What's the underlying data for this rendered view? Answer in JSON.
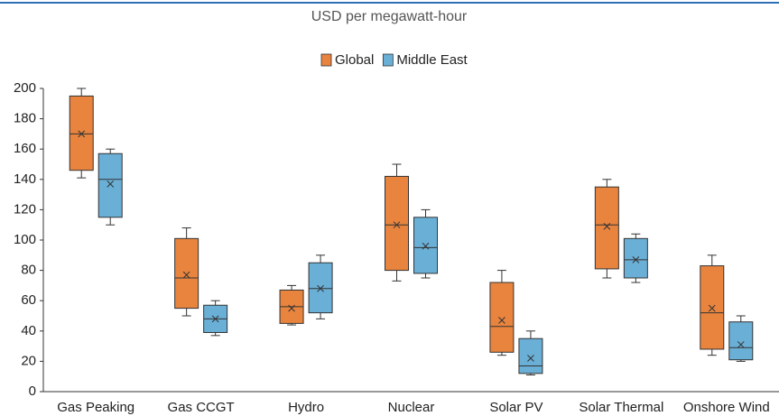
{
  "chart_data": {
    "type": "box",
    "title": "USD per megawatt-hour",
    "categories": [
      "Gas Peaking",
      "Gas CCGT",
      "Hydro",
      "Nuclear",
      "Solar PV",
      "Solar Thermal",
      "Onshore Wind"
    ],
    "series": [
      {
        "name": "Global",
        "color": "#e8843e",
        "min": [
          141,
          50,
          44,
          73,
          24,
          75,
          24
        ],
        "q1": [
          146,
          55,
          45,
          80,
          26,
          81,
          28
        ],
        "median": [
          170,
          75,
          56,
          110,
          43,
          110,
          52
        ],
        "q3": [
          195,
          101,
          67,
          142,
          72,
          135,
          83
        ],
        "max": [
          200,
          108,
          70,
          150,
          80,
          140,
          90
        ],
        "mean": [
          170,
          77,
          55,
          110,
          47,
          109,
          55
        ]
      },
      {
        "name": "Middle East",
        "color": "#6aafd6",
        "min": [
          110,
          37,
          48,
          75,
          11,
          72,
          20
        ],
        "q1": [
          115,
          39,
          52,
          78,
          12,
          75,
          21
        ],
        "median": [
          140,
          48,
          68,
          95,
          17,
          87,
          29
        ],
        "q3": [
          157,
          57,
          85,
          115,
          35,
          101,
          46
        ],
        "max": [
          160,
          60,
          90,
          120,
          40,
          104,
          50
        ],
        "mean": [
          137,
          48,
          68,
          96,
          22,
          87,
          31
        ]
      }
    ],
    "ylim": [
      0,
      200
    ],
    "yticks": [
      0,
      20,
      40,
      60,
      80,
      100,
      120,
      140,
      160,
      180,
      200
    ],
    "grid": false,
    "legend": "top"
  }
}
